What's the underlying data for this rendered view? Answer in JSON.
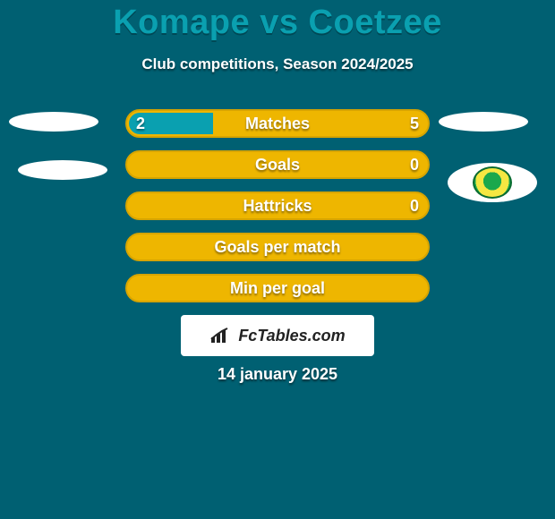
{
  "background_color": "#006072",
  "title": {
    "text": "Komape vs Coetzee",
    "color": "#0aa0b0",
    "fontsize": 38,
    "fontweight": 900
  },
  "subtitle": {
    "text": "Club competitions, Season 2024/2025",
    "color": "#ffffff",
    "fontsize": 17
  },
  "bars": {
    "track_color": "#eeb600",
    "track_border_color": "#d6a400",
    "fill_color": "#0aa0b0",
    "label_color": "#ffffff",
    "label_fontsize": 18,
    "rows": [
      {
        "label": "Matches",
        "left": "2",
        "right": "5",
        "fill_pct": 28
      },
      {
        "label": "Goals",
        "left": "",
        "right": "0",
        "fill_pct": 0
      },
      {
        "label": "Hattricks",
        "left": "",
        "right": "0",
        "fill_pct": 0
      },
      {
        "label": "Goals per match",
        "left": "",
        "right": "",
        "fill_pct": 0
      },
      {
        "label": "Min per goal",
        "left": "",
        "right": "",
        "fill_pct": 0
      }
    ]
  },
  "crests": {
    "left": {
      "shape": "ellipse",
      "color": "#ffffff"
    },
    "right": {
      "shape": "ellipse",
      "color": "#ffffff",
      "badge_colors": [
        "#1aa84c",
        "#f5e742"
      ]
    }
  },
  "branding": {
    "icon": "bar-chart-icon",
    "text": "FcTables.com",
    "box_bg": "#ffffff",
    "text_color": "#222222"
  },
  "date": {
    "text": "14 january 2025",
    "color": "#ffffff",
    "fontsize": 18
  }
}
